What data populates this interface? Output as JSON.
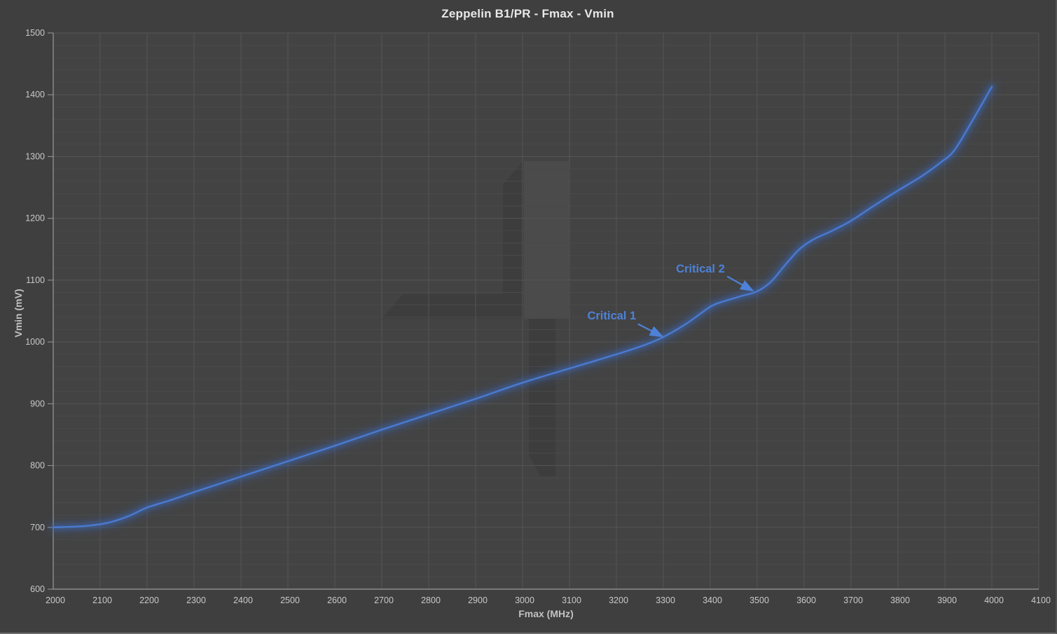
{
  "title": "Zeppelin B1/PR - Fmax - Vmin",
  "colors": {
    "background": "#3f3f3f",
    "plot_background": "#434343",
    "grid_minor": "#4a4a4a",
    "grid_major": "#545454",
    "axis_line": "#9a9a9a",
    "tick_label": "#c9c9c9",
    "title_text": "#e8e8e8",
    "axis_title_text": "#c2c2c2",
    "curve": "#4b7ace",
    "curve_glow": "#3a66b8",
    "annotation": "#4d82d8"
  },
  "chart_data": {
    "type": "line",
    "title": "Zeppelin B1/PR - Fmax - Vmin",
    "xlabel": "Fmax (MHz)",
    "ylabel": "Vmin (mV)",
    "xlim": [
      2000,
      4100
    ],
    "ylim": [
      600,
      1500
    ],
    "x_tick_step": 100,
    "y_tick_step": 100,
    "y_minor_step": 20,
    "grid": true,
    "legend_position": "none",
    "series": [
      {
        "name": "Vmin",
        "points": [
          [
            2000,
            700
          ],
          [
            2040,
            701
          ],
          [
            2080,
            703
          ],
          [
            2120,
            708
          ],
          [
            2160,
            718
          ],
          [
            2200,
            732
          ],
          [
            2250,
            744
          ],
          [
            2300,
            757
          ],
          [
            2400,
            782
          ],
          [
            2500,
            807
          ],
          [
            2600,
            832
          ],
          [
            2700,
            858
          ],
          [
            2800,
            883
          ],
          [
            2900,
            908
          ],
          [
            3000,
            934
          ],
          [
            3100,
            957
          ],
          [
            3200,
            980
          ],
          [
            3260,
            995
          ],
          [
            3300,
            1008
          ],
          [
            3350,
            1030
          ],
          [
            3400,
            1057
          ],
          [
            3430,
            1066
          ],
          [
            3470,
            1075
          ],
          [
            3500,
            1082
          ],
          [
            3530,
            1098
          ],
          [
            3560,
            1125
          ],
          [
            3590,
            1150
          ],
          [
            3620,
            1166
          ],
          [
            3660,
            1180
          ],
          [
            3700,
            1196
          ],
          [
            3750,
            1221
          ],
          [
            3800,
            1245
          ],
          [
            3850,
            1268
          ],
          [
            3890,
            1290
          ],
          [
            3920,
            1310
          ],
          [
            3960,
            1360
          ],
          [
            4000,
            1413
          ]
        ]
      }
    ],
    "annotations": [
      {
        "label": "Critical 1",
        "text_at": [
          3190,
          1043
        ],
        "arrow_from": [
          3246,
          1029
        ],
        "arrow_to": [
          3295,
          1010
        ]
      },
      {
        "label": "Critical 2",
        "text_at": [
          3379,
          1119
        ],
        "arrow_from": [
          3436,
          1106
        ],
        "arrow_to": [
          3488,
          1084
        ]
      }
    ]
  }
}
